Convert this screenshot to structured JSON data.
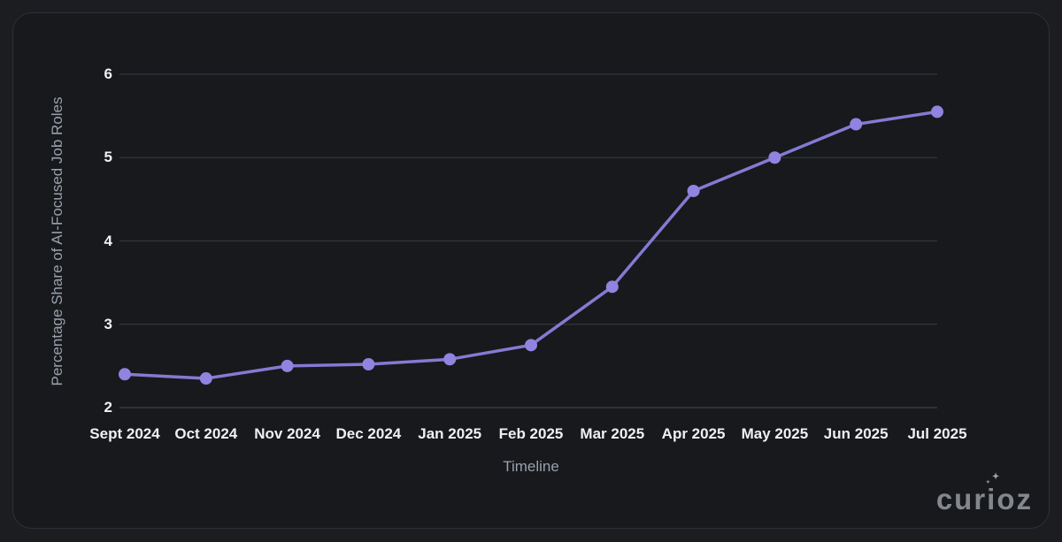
{
  "chart_data": {
    "type": "line",
    "title": "",
    "categories": [
      "Sept 2024",
      "Oct 2024",
      "Nov 2024",
      "Dec 2024",
      "Jan 2025",
      "Feb 2025",
      "Mar 2025",
      "Apr 2025",
      "May 2025",
      "Jun 2025",
      "Jul 2025"
    ],
    "series": [
      {
        "name": "Percentage Share of AI-Focused Job Roles",
        "values": [
          2.4,
          2.35,
          2.5,
          2.52,
          2.58,
          2.75,
          3.45,
          4.6,
          5.0,
          5.4,
          5.55
        ]
      }
    ],
    "xlabel": "Timeline",
    "ylabel": "Percentage Share of AI-Focused Job Roles",
    "ylim": [
      2,
      6
    ],
    "yticks": [
      2,
      3,
      4,
      5,
      6
    ],
    "grid": true,
    "legend": "none",
    "colors": {
      "line": "#857ad2",
      "marker": "#9183e0",
      "grid": "#33363c",
      "baseline": "#3d4046",
      "tick_text": "#eef0f3",
      "axis_title_text": "#99a1ac"
    }
  },
  "watermark": {
    "text": "curioz",
    "sparkle": "✦",
    "color": "#84878c"
  }
}
